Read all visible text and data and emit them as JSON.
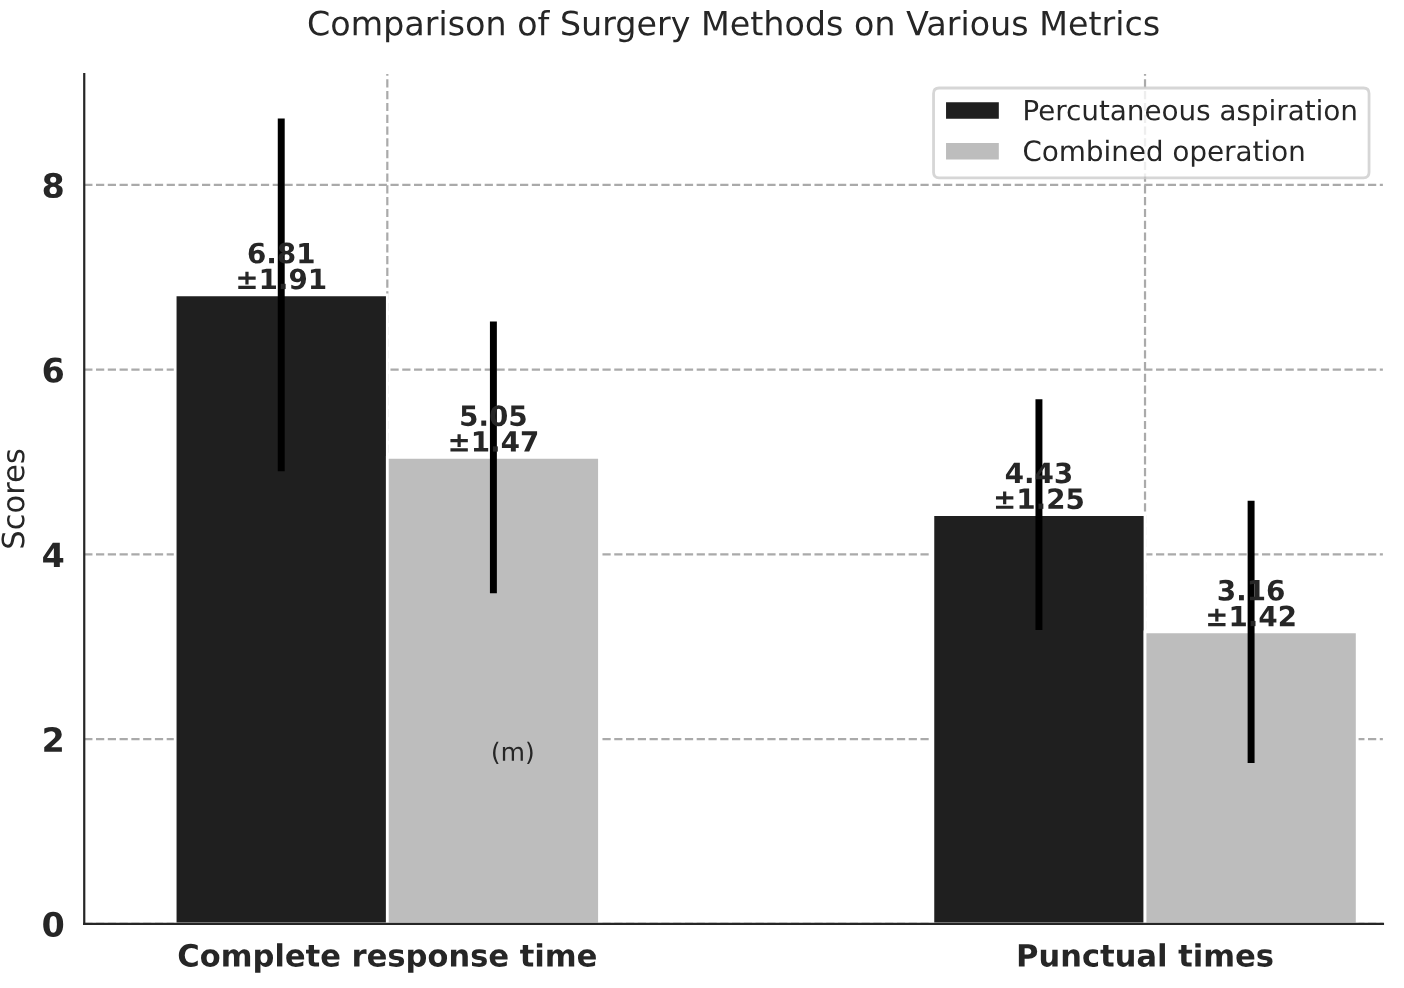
{
  "chart_data": {
    "type": "bar",
    "title": "Comparison of Surgery Methods on Various Metrics",
    "ylabel": "Scores",
    "categories": [
      "Complete response time",
      "Punctual times"
    ],
    "series": [
      {
        "name": "Percutaneous aspiration",
        "color": "#1f1f1f",
        "values": [
          6.81,
          4.43
        ],
        "errors": [
          1.91,
          1.25
        ],
        "value_labels": [
          "6.81\n±1.91",
          "4.43\n±1.25"
        ]
      },
      {
        "name": "Combined operation",
        "color": "#bdbdbd",
        "values": [
          5.05,
          3.16
        ],
        "errors": [
          1.47,
          1.42
        ],
        "value_labels": [
          "5.05\n±1.47",
          "3.16\n±1.42"
        ]
      }
    ],
    "annotations": [
      "(m)"
    ],
    "ylim": [
      0,
      9.2
    ],
    "yticks": [
      0,
      2,
      4,
      6,
      8
    ],
    "grid": true,
    "legend": "top right"
  }
}
